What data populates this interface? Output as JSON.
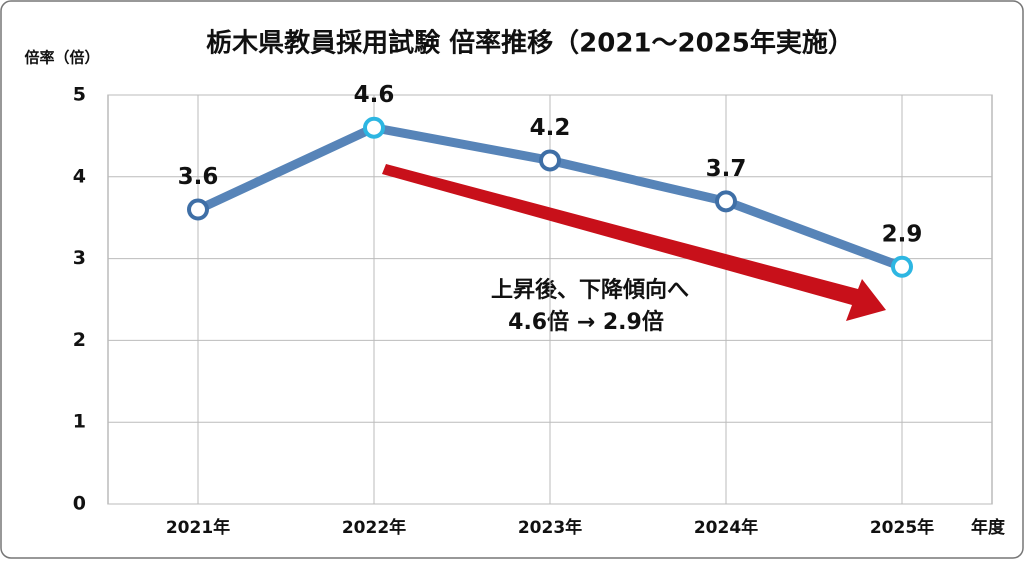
{
  "chart_data": {
    "type": "line",
    "title": "栃木県教員採用試験 倍率推移（2021〜2025年実施）",
    "y_label": "倍率（倍）",
    "x_label": "年度",
    "categories": [
      "2021年",
      "2022年",
      "2023年",
      "2024年",
      "2025年"
    ],
    "values": [
      3.6,
      4.6,
      4.2,
      3.7,
      2.9
    ],
    "color": "#5784b8",
    "point_colors": [
      "#3f6fa6",
      "#2db6e2",
      "#3f6fa6",
      "#3f6fa6",
      "#2db6e2"
    ],
    "ylim": [
      0,
      5
    ],
    "yticks": [
      0,
      1,
      2,
      3,
      4,
      5
    ],
    "grid": true,
    "annotations": [
      "上昇後、下降傾向へ",
      "4.6倍 → 2.9倍"
    ],
    "arrow_color": "#c8101a"
  }
}
